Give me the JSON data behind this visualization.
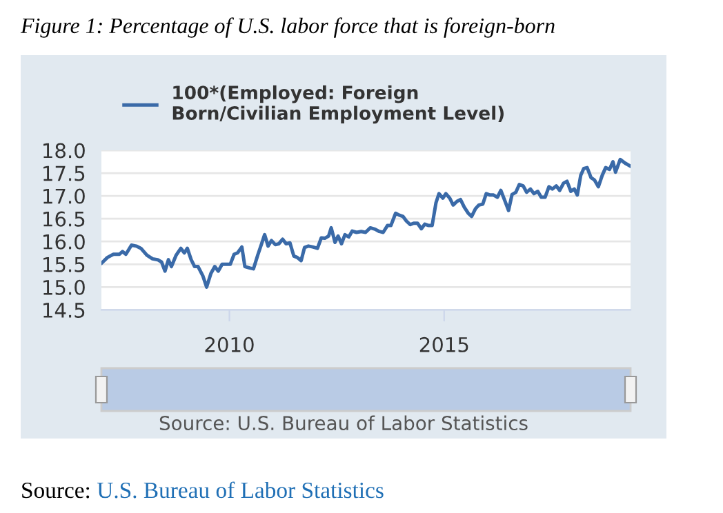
{
  "chart_data": {
    "type": "line",
    "title": "Figure 1: Percentage of U.S. labor force that is foreign-born",
    "xlim": [
      2007.02,
      2019.34
    ],
    "xticks": [
      2010,
      2015
    ],
    "ylim": [
      14.5,
      18.0
    ],
    "yticks": [
      14.5,
      {
        "value": 15,
        "label": "15.0"
      },
      15.5,
      {
        "value": 16,
        "label": "16.0"
      },
      16.5,
      {
        "value": 17,
        "label": "17.0"
      },
      17.5,
      {
        "value": 18,
        "label": "18.0"
      }
    ],
    "grid": "y",
    "legend": "top left",
    "marker": "none",
    "line_style": "solid",
    "annotations": [
      "Source: U.S. Bureau of Labor Statistics",
      "Source: U.S. Bureau of Labor Statistics"
    ],
    "series": [
      {
        "name": "100*(Employed: Foreign Born/Civilian Employment Level)",
        "color": "#3a6aa8",
        "x": [
          2007.03,
          2007.16,
          2007.3,
          2007.44,
          2007.51,
          2007.59,
          2007.72,
          2007.83,
          2007.94,
          2008.08,
          2008.21,
          2008.33,
          2008.42,
          2008.5,
          2008.58,
          2008.65,
          2008.76,
          2008.87,
          2008.95,
          2009.02,
          2009.11,
          2009.19,
          2009.27,
          2009.38,
          2009.47,
          2009.57,
          2009.66,
          2009.74,
          2009.83,
          2009.94,
          2010.02,
          2010.11,
          2010.19,
          2010.29,
          2010.36,
          2010.47,
          2010.56,
          2010.66,
          2010.75,
          2010.82,
          2010.9,
          2010.98,
          2011.07,
          2011.15,
          2011.24,
          2011.32,
          2011.41,
          2011.5,
          2011.58,
          2011.67,
          2011.75,
          2011.84,
          2011.94,
          2012.05,
          2012.14,
          2012.22,
          2012.31,
          2012.37,
          2012.46,
          2012.53,
          2012.61,
          2012.69,
          2012.78,
          2012.86,
          2012.96,
          2013.07,
          2013.17,
          2013.28,
          2013.39,
          2013.49,
          2013.58,
          2013.68,
          2013.76,
          2013.87,
          2013.95,
          2014.04,
          2014.12,
          2014.21,
          2014.29,
          2014.38,
          2014.47,
          2014.55,
          2014.64,
          2014.72,
          2014.81,
          2014.88,
          2014.97,
          2015.04,
          2015.13,
          2015.21,
          2015.3,
          2015.38,
          2015.47,
          2015.56,
          2015.64,
          2015.73,
          2015.81,
          2015.9,
          2015.98,
          2016.07,
          2016.15,
          2016.24,
          2016.32,
          2016.41,
          2016.5,
          2016.58,
          2016.67,
          2016.75,
          2016.84,
          2016.92,
          2017.01,
          2017.09,
          2017.18,
          2017.26,
          2017.35,
          2017.44,
          2017.52,
          2017.61,
          2017.69,
          2017.78,
          2017.86,
          2017.95,
          2018.03,
          2018.1,
          2018.18,
          2018.25,
          2018.33,
          2018.42,
          2018.5,
          2018.59,
          2018.68,
          2018.76,
          2018.85,
          2018.93,
          2018.99,
          2019.1,
          2019.21,
          2019.34
        ],
        "values": [
          15.53,
          15.65,
          15.72,
          15.72,
          15.78,
          15.72,
          15.92,
          15.9,
          15.85,
          15.7,
          15.62,
          15.6,
          15.55,
          15.35,
          15.6,
          15.45,
          15.7,
          15.85,
          15.75,
          15.85,
          15.6,
          15.45,
          15.45,
          15.25,
          15.0,
          15.3,
          15.45,
          15.35,
          15.5,
          15.5,
          15.5,
          15.72,
          15.75,
          15.88,
          15.45,
          15.42,
          15.4,
          15.7,
          15.95,
          16.15,
          15.9,
          16.02,
          15.93,
          15.95,
          16.05,
          15.95,
          15.97,
          15.68,
          15.65,
          15.58,
          15.87,
          15.9,
          15.88,
          15.85,
          16.08,
          16.07,
          16.12,
          16.3,
          15.98,
          16.12,
          15.95,
          16.15,
          16.1,
          16.23,
          16.2,
          16.22,
          16.2,
          16.3,
          16.27,
          16.22,
          16.2,
          16.35,
          16.35,
          16.62,
          16.58,
          16.55,
          16.45,
          16.37,
          16.4,
          16.4,
          16.28,
          16.38,
          16.35,
          16.35,
          16.85,
          17.05,
          16.95,
          17.05,
          16.95,
          16.8,
          16.88,
          16.92,
          16.75,
          16.62,
          16.55,
          16.72,
          16.8,
          16.82,
          17.05,
          17.02,
          17.02,
          16.97,
          17.12,
          16.9,
          16.68,
          17.03,
          17.08,
          17.25,
          17.22,
          17.08,
          17.15,
          17.05,
          17.1,
          16.97,
          16.97,
          17.2,
          17.15,
          17.22,
          17.12,
          17.28,
          17.32,
          17.1,
          17.15,
          17.02,
          17.45,
          17.6,
          17.62,
          17.4,
          17.35,
          17.2,
          17.45,
          17.62,
          17.58,
          17.75,
          17.52,
          17.8,
          17.72,
          17.65
        ]
      }
    ]
  }
}
